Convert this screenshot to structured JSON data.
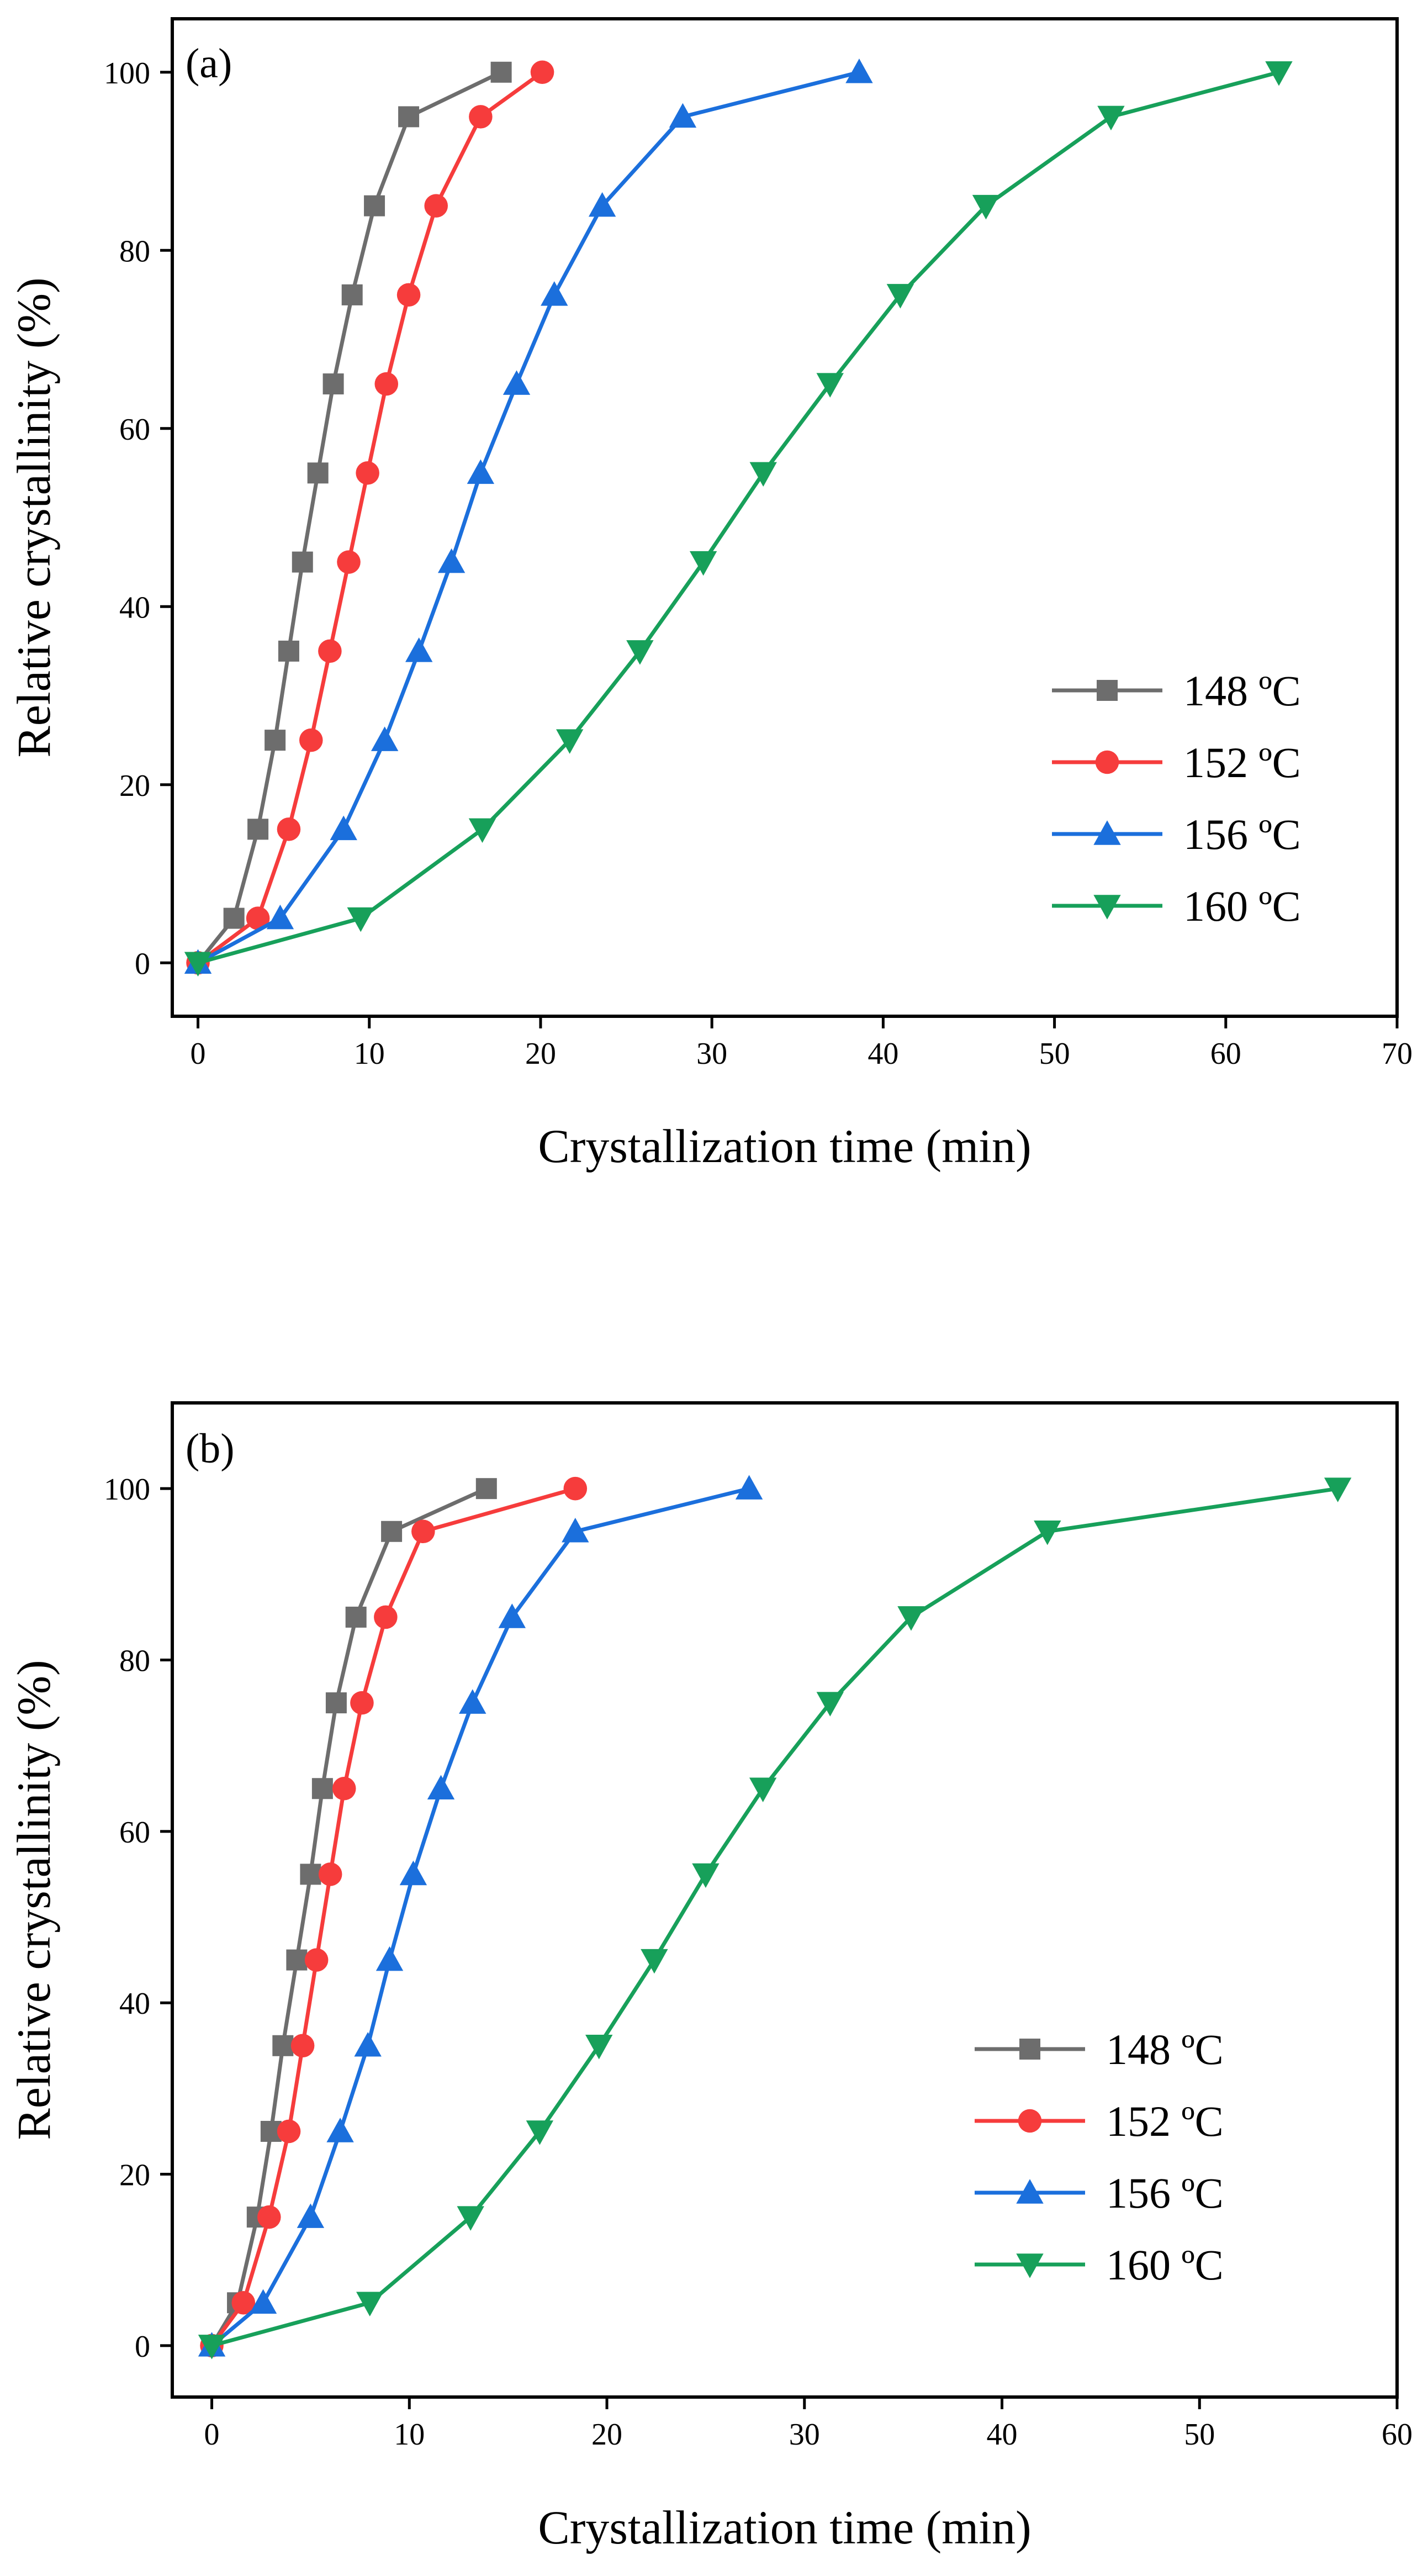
{
  "chart_data": [
    {
      "type": "line",
      "panel_label": "(a)",
      "xlabel": "Crystallization time (min)",
      "ylabel": "Relative crystallinity (%)",
      "xlim": [
        -1.5,
        70
      ],
      "ylim": [
        -6,
        106
      ],
      "xticks": [
        0,
        10,
        20,
        30,
        40,
        50,
        60,
        70
      ],
      "yticks": [
        0,
        20,
        40,
        60,
        80,
        100
      ],
      "legend_position": "right-middle",
      "series": [
        {
          "name": "148 ºC",
          "marker": "square",
          "color": "#6d6d6d",
          "x": [
            0,
            2.1,
            3.5,
            4.5,
            5.3,
            6.1,
            7.0,
            7.9,
            9.0,
            10.3,
            12.3,
            17.7
          ],
          "y": [
            0,
            5,
            15,
            25,
            35,
            45,
            55,
            65,
            75,
            85,
            95,
            100
          ]
        },
        {
          "name": "152 ºC",
          "marker": "circle",
          "color": "#f63c3c",
          "x": [
            0,
            3.5,
            5.3,
            6.6,
            7.7,
            8.8,
            9.9,
            11.0,
            12.3,
            13.9,
            16.5,
            20.1
          ],
          "y": [
            0,
            5,
            15,
            25,
            35,
            45,
            55,
            65,
            75,
            85,
            95,
            100
          ]
        },
        {
          "name": "156 ºC",
          "marker": "triangle-up",
          "color": "#1b6fdc",
          "x": [
            0,
            4.8,
            8.5,
            10.9,
            12.9,
            14.8,
            16.5,
            18.6,
            20.8,
            23.6,
            28.3,
            38.6
          ],
          "y": [
            0,
            5,
            15,
            25,
            35,
            45,
            55,
            65,
            75,
            85,
            95,
            100
          ]
        },
        {
          "name": "160 ºC",
          "marker": "triangle-down",
          "color": "#17a05a",
          "x": [
            0,
            9.5,
            16.6,
            21.7,
            25.8,
            29.5,
            33.0,
            36.9,
            41.0,
            46.0,
            53.3,
            63.1
          ],
          "y": [
            0,
            5,
            15,
            25,
            35,
            45,
            55,
            65,
            75,
            85,
            95,
            100
          ]
        }
      ]
    },
    {
      "type": "line",
      "panel_label": "(b)",
      "xlabel": "Crystallization time (min)",
      "ylabel": "Relative crystallinity (%)",
      "xlim": [
        -2,
        60
      ],
      "ylim": [
        -6,
        110
      ],
      "xticks": [
        0,
        10,
        20,
        30,
        40,
        50,
        60
      ],
      "yticks": [
        0,
        20,
        40,
        60,
        80,
        100
      ],
      "legend_position": "right-lower",
      "series": [
        {
          "name": "148 ºC",
          "marker": "square",
          "color": "#6d6d6d",
          "x": [
            0,
            1.3,
            2.3,
            3.0,
            3.6,
            4.3,
            5.0,
            5.6,
            6.3,
            7.3,
            9.1,
            13.9
          ],
          "y": [
            0,
            5,
            15,
            25,
            35,
            45,
            55,
            65,
            75,
            85,
            95,
            100
          ]
        },
        {
          "name": "152 ºC",
          "marker": "circle",
          "color": "#f63c3c",
          "x": [
            0,
            1.6,
            2.9,
            3.9,
            4.6,
            5.3,
            6.0,
            6.7,
            7.6,
            8.8,
            10.7,
            18.4
          ],
          "y": [
            0,
            5,
            15,
            25,
            35,
            45,
            55,
            65,
            75,
            85,
            95,
            100
          ]
        },
        {
          "name": "156 ºC",
          "marker": "triangle-up",
          "color": "#1b6fdc",
          "x": [
            0,
            2.6,
            5.0,
            6.5,
            7.9,
            9.0,
            10.2,
            11.6,
            13.2,
            15.2,
            18.4,
            27.2
          ],
          "y": [
            0,
            5,
            15,
            25,
            35,
            45,
            55,
            65,
            75,
            85,
            95,
            100
          ]
        },
        {
          "name": "160 ºC",
          "marker": "triangle-down",
          "color": "#17a05a",
          "x": [
            0,
            8.0,
            13.1,
            16.6,
            19.6,
            22.4,
            25.0,
            27.9,
            31.3,
            35.4,
            42.3,
            57.0
          ],
          "y": [
            0,
            5,
            15,
            25,
            35,
            45,
            55,
            65,
            75,
            85,
            95,
            100
          ]
        }
      ]
    }
  ]
}
